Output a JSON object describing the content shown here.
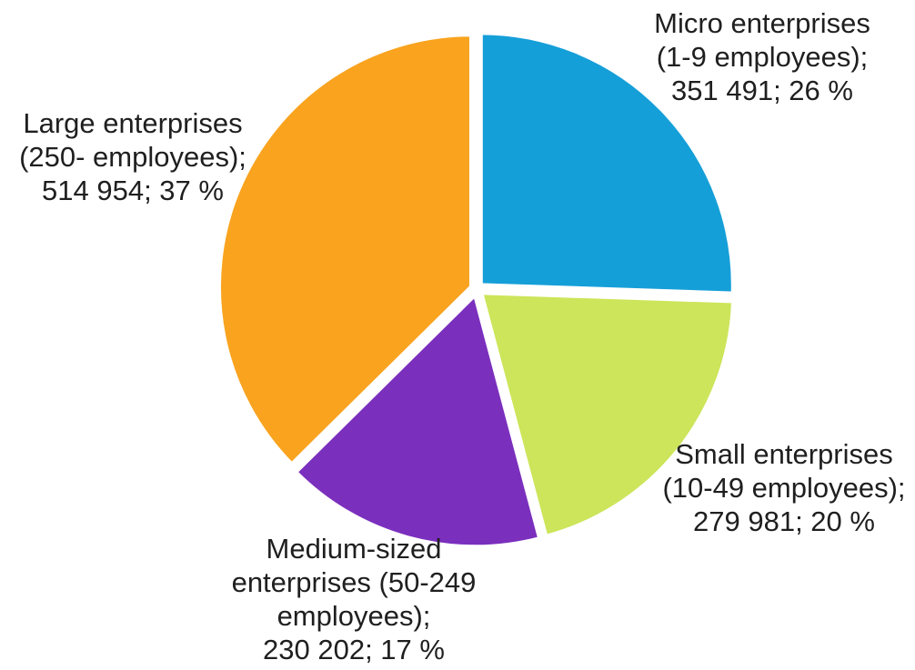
{
  "chart_data": {
    "type": "pie",
    "title": "",
    "legend": "none",
    "slices": [
      {
        "name": "Micro enterprises (1-9 employees)",
        "value": 351491,
        "percent": 26,
        "color": "#159fd8",
        "label_lines": [
          "Micro enterprises",
          "(1-9 employees);",
          "351 491; 26 %"
        ]
      },
      {
        "name": "Small enterprises (10-49 employees)",
        "value": 279981,
        "percent": 20,
        "color": "#cce55a",
        "label_lines": [
          "Small enterprises",
          "(10-49 employees);",
          "279 981; 20 %"
        ]
      },
      {
        "name": "Medium-sized enterprises (50-249 employees)",
        "value": 230202,
        "percent": 17,
        "color": "#7b2fbd",
        "label_lines": [
          "Medium-sized",
          "enterprises (50-249",
          "employees);",
          "230 202; 17 %"
        ]
      },
      {
        "name": "Large enterprises (250- employees)",
        "value": 514954,
        "percent": 37,
        "color": "#f9a31f",
        "label_lines": [
          "Large enterprises",
          "(250- employees);",
          "514 954; 37 %"
        ]
      }
    ]
  }
}
